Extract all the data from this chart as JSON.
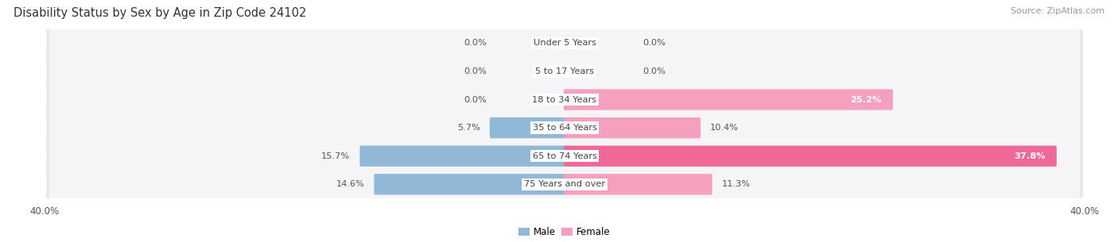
{
  "title": "Disability Status by Sex by Age in Zip Code 24102",
  "source": "Source: ZipAtlas.com",
  "categories": [
    "Under 5 Years",
    "5 to 17 Years",
    "18 to 34 Years",
    "35 to 64 Years",
    "65 to 74 Years",
    "75 Years and over"
  ],
  "male_values": [
    0.0,
    0.0,
    0.0,
    5.7,
    15.7,
    14.6
  ],
  "female_values": [
    0.0,
    0.0,
    25.2,
    10.4,
    37.8,
    11.3
  ],
  "male_color": "#92b8d8",
  "female_color_normal": "#f4a0be",
  "female_color_hot": "#f06898",
  "axis_max": 40.0,
  "bar_row_bg": "#e8e8eb",
  "bar_row_bg_inner": "#f5f5f7",
  "bar_height": 0.62,
  "title_fontsize": 10.5,
  "label_fontsize": 8.2,
  "value_fontsize": 8.2,
  "tick_fontsize": 8.5,
  "source_fontsize": 8,
  "legend_fontsize": 8.5
}
